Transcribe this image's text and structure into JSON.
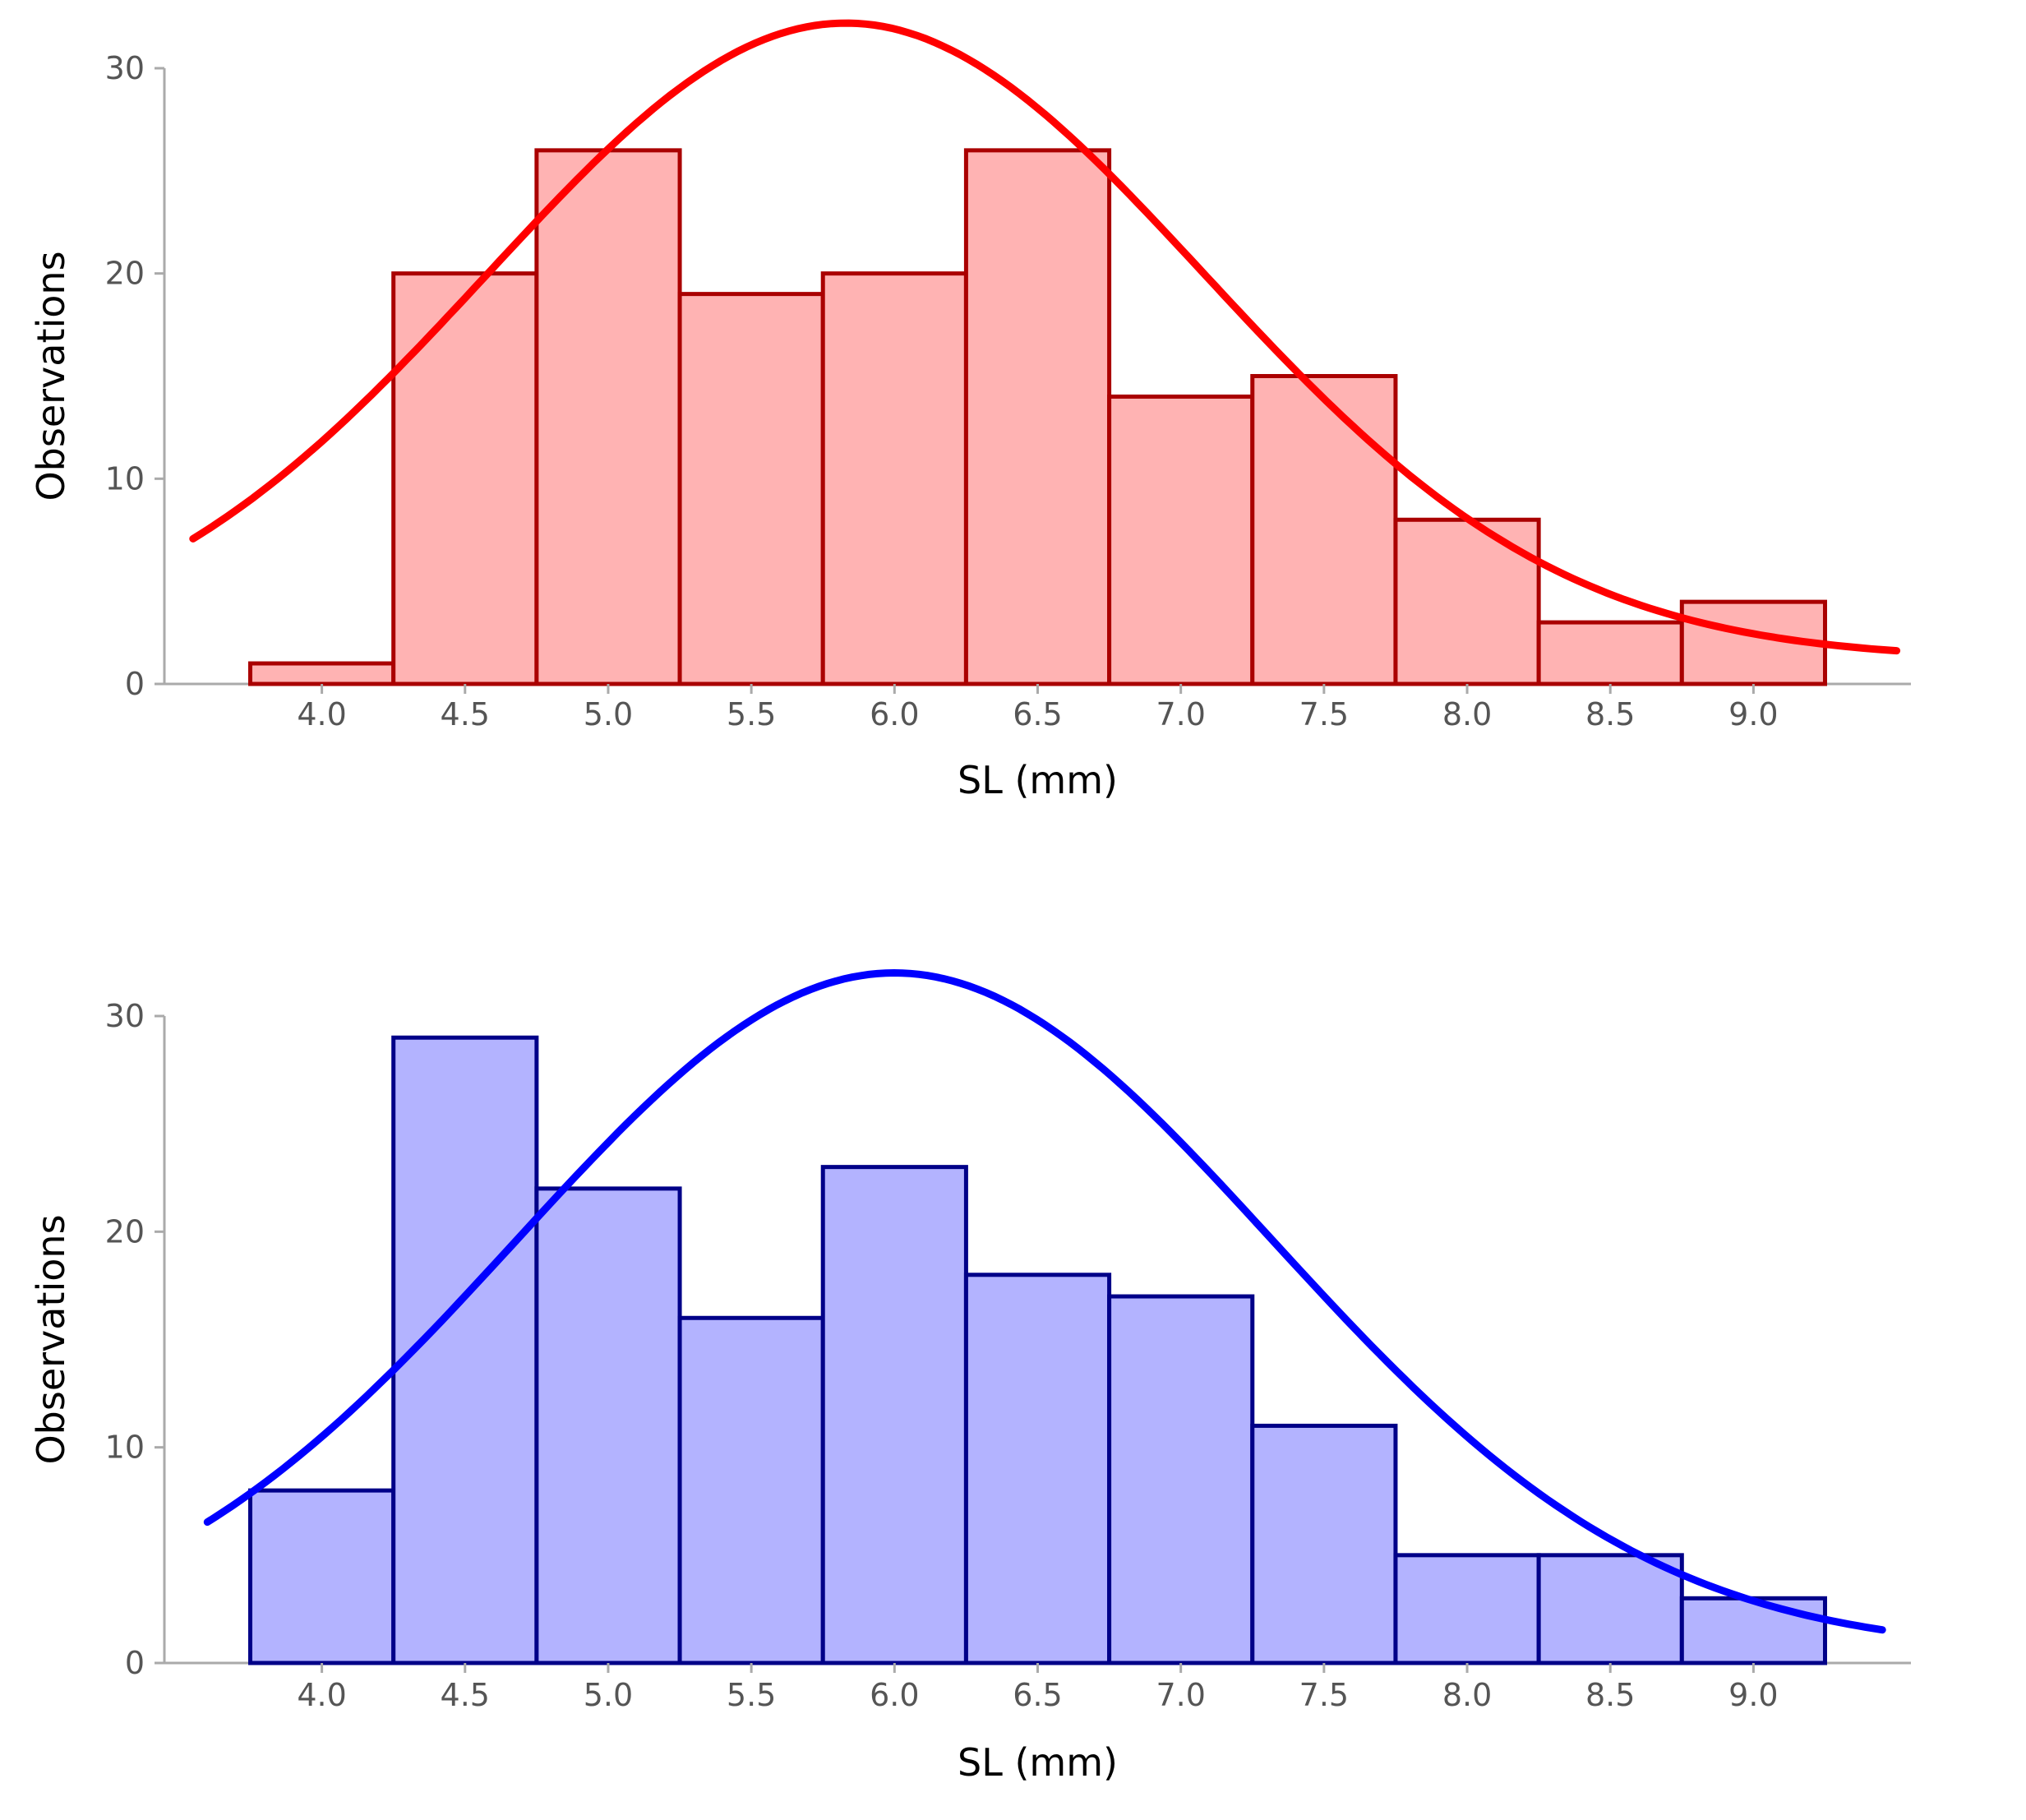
{
  "chart_data": [
    {
      "type": "bar",
      "title": "",
      "xlabel": "SL (mm)",
      "ylabel": "Observations",
      "bin_width": 0.5,
      "bin_centers": [
        4.0,
        4.5,
        5.0,
        5.5,
        6.0,
        6.5,
        7.0,
        7.5,
        8.0,
        8.5,
        9.0
      ],
      "values": [
        1,
        20,
        26,
        19,
        20,
        26,
        14,
        15,
        8,
        3,
        4
      ],
      "xticks": [
        "4.0",
        "4.5",
        "5.0",
        "5.5",
        "6.0",
        "6.5",
        "7.0",
        "7.5",
        "8.0",
        "8.5",
        "9.0"
      ],
      "yticks": [
        "0",
        "10",
        "20",
        "30"
      ],
      "ylim": [
        0,
        30
      ],
      "xlim": [
        3.45,
        9.55
      ],
      "fit_curve": {
        "type": "normal",
        "mean": 5.83,
        "sd": 1.25,
        "peak": 32.2,
        "base": 1.2,
        "x_start": 3.55,
        "x_end": 9.5
      },
      "colors": {
        "bar_fill": "#ffb3b3",
        "bar_stroke": "#aa0000",
        "curve": "#ff0000"
      }
    },
    {
      "type": "bar",
      "title": "",
      "xlabel": "SL (mm)",
      "ylabel": "Observations",
      "bin_width": 0.5,
      "bin_centers": [
        4.0,
        4.5,
        5.0,
        5.5,
        6.0,
        6.5,
        7.0,
        7.5,
        8.0,
        8.5,
        9.0
      ],
      "values": [
        8,
        29,
        22,
        16,
        23,
        18,
        17,
        11,
        5,
        5,
        3
      ],
      "xticks": [
        "4.0",
        "4.5",
        "5.0",
        "5.5",
        "6.0",
        "6.5",
        "7.0",
        "7.5",
        "8.0",
        "8.5",
        "9.0"
      ],
      "yticks": [
        "0",
        "10",
        "20",
        "30"
      ],
      "ylim": [
        0,
        30
      ],
      "xlim": [
        3.45,
        9.55
      ],
      "fit_curve": {
        "type": "normal",
        "mean": 6.0,
        "sd": 1.32,
        "peak": 32.0,
        "base": 0.5,
        "x_start": 3.6,
        "x_end": 9.45
      },
      "colors": {
        "bar_fill": "#b3b3ff",
        "bar_stroke": "#000088",
        "curve": "#0000ff"
      }
    }
  ]
}
